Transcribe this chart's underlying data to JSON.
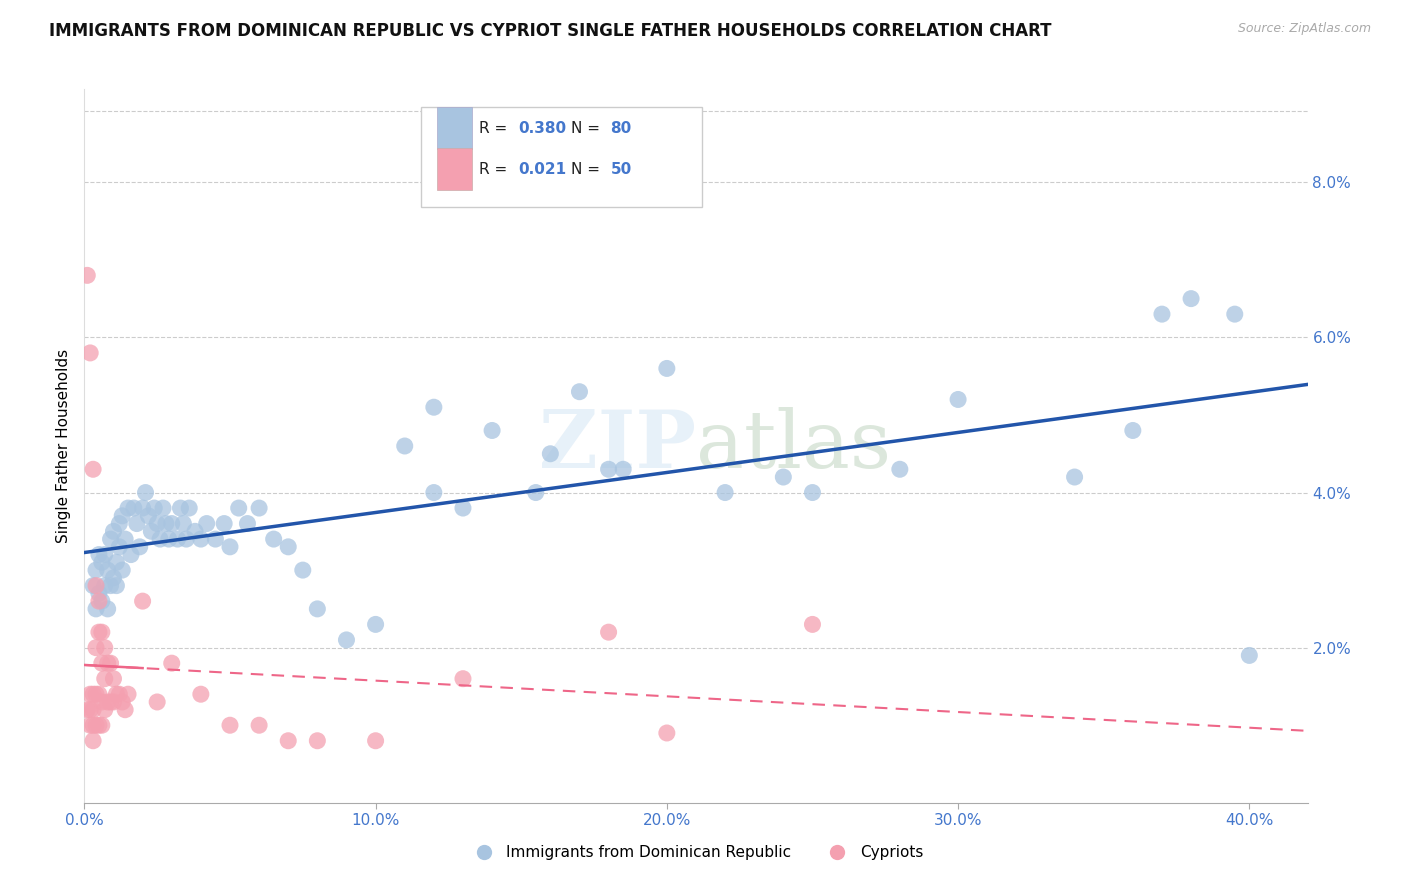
{
  "title": "IMMIGRANTS FROM DOMINICAN REPUBLIC VS CYPRIOT SINGLE FATHER HOUSEHOLDS CORRELATION CHART",
  "source": "Source: ZipAtlas.com",
  "ylabel": "Single Father Households",
  "ytick_values": [
    0.0,
    0.02,
    0.04,
    0.06,
    0.08
  ],
  "ytick_labels": [
    "",
    "2.0%",
    "4.0%",
    "6.0%",
    "8.0%"
  ],
  "xtick_values": [
    0.0,
    0.1,
    0.2,
    0.3,
    0.4
  ],
  "xtick_labels": [
    "0.0%",
    "10.0%",
    "20.0%",
    "30.0%",
    "40.0%"
  ],
  "xlim": [
    0.0,
    0.42
  ],
  "ylim": [
    0.0,
    0.092
  ],
  "legend1_r": "0.380",
  "legend1_n": "80",
  "legend2_r": "0.021",
  "legend2_n": "50",
  "blue_color": "#a8c4e0",
  "pink_color": "#f4a0b0",
  "trend_blue": "#2255aa",
  "trend_pink": "#ee6688",
  "watermark": "ZIPatlas",
  "blue_scatter_x": [
    0.003,
    0.004,
    0.004,
    0.005,
    0.005,
    0.006,
    0.006,
    0.007,
    0.007,
    0.008,
    0.008,
    0.009,
    0.009,
    0.01,
    0.01,
    0.011,
    0.011,
    0.012,
    0.012,
    0.013,
    0.013,
    0.014,
    0.015,
    0.016,
    0.017,
    0.018,
    0.019,
    0.02,
    0.021,
    0.022,
    0.023,
    0.024,
    0.025,
    0.026,
    0.027,
    0.028,
    0.029,
    0.03,
    0.032,
    0.033,
    0.034,
    0.035,
    0.036,
    0.038,
    0.04,
    0.042,
    0.045,
    0.048,
    0.05,
    0.053,
    0.056,
    0.06,
    0.065,
    0.07,
    0.075,
    0.08,
    0.09,
    0.1,
    0.11,
    0.12,
    0.13,
    0.14,
    0.155,
    0.17,
    0.185,
    0.2,
    0.22,
    0.24,
    0.12,
    0.16,
    0.18,
    0.25,
    0.28,
    0.3,
    0.34,
    0.36,
    0.37,
    0.38,
    0.395,
    0.4
  ],
  "blue_scatter_y": [
    0.028,
    0.03,
    0.025,
    0.027,
    0.032,
    0.026,
    0.031,
    0.028,
    0.032,
    0.03,
    0.025,
    0.028,
    0.034,
    0.029,
    0.035,
    0.031,
    0.028,
    0.036,
    0.033,
    0.03,
    0.037,
    0.034,
    0.038,
    0.032,
    0.038,
    0.036,
    0.033,
    0.038,
    0.04,
    0.037,
    0.035,
    0.038,
    0.036,
    0.034,
    0.038,
    0.036,
    0.034,
    0.036,
    0.034,
    0.038,
    0.036,
    0.034,
    0.038,
    0.035,
    0.034,
    0.036,
    0.034,
    0.036,
    0.033,
    0.038,
    0.036,
    0.038,
    0.034,
    0.033,
    0.03,
    0.025,
    0.021,
    0.023,
    0.046,
    0.04,
    0.038,
    0.048,
    0.04,
    0.053,
    0.043,
    0.056,
    0.04,
    0.042,
    0.051,
    0.045,
    0.043,
    0.04,
    0.043,
    0.052,
    0.042,
    0.048,
    0.063,
    0.065,
    0.063,
    0.019
  ],
  "pink_scatter_x": [
    0.001,
    0.001,
    0.002,
    0.002,
    0.002,
    0.002,
    0.003,
    0.003,
    0.003,
    0.003,
    0.003,
    0.004,
    0.004,
    0.004,
    0.004,
    0.005,
    0.005,
    0.005,
    0.005,
    0.006,
    0.006,
    0.006,
    0.006,
    0.007,
    0.007,
    0.007,
    0.008,
    0.008,
    0.009,
    0.009,
    0.01,
    0.01,
    0.011,
    0.012,
    0.013,
    0.014,
    0.015,
    0.02,
    0.025,
    0.03,
    0.04,
    0.05,
    0.06,
    0.07,
    0.08,
    0.1,
    0.13,
    0.18,
    0.2,
    0.25
  ],
  "pink_scatter_y": [
    0.068,
    0.012,
    0.058,
    0.014,
    0.012,
    0.01,
    0.043,
    0.014,
    0.012,
    0.01,
    0.008,
    0.028,
    0.02,
    0.014,
    0.01,
    0.026,
    0.022,
    0.014,
    0.01,
    0.022,
    0.018,
    0.013,
    0.01,
    0.02,
    0.016,
    0.012,
    0.018,
    0.013,
    0.018,
    0.013,
    0.016,
    0.013,
    0.014,
    0.014,
    0.013,
    0.012,
    0.014,
    0.026,
    0.013,
    0.018,
    0.014,
    0.01,
    0.01,
    0.008,
    0.008,
    0.008,
    0.016,
    0.022,
    0.009,
    0.023
  ]
}
